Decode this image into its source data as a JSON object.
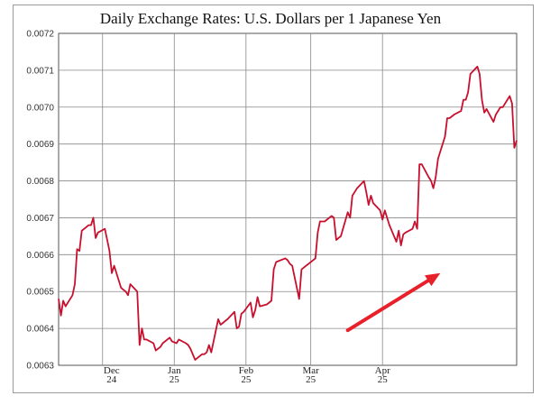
{
  "chart_data": {
    "type": "line",
    "title": "Daily Exchange Rates: U.S. Dollars per 1 Japanese Yen",
    "xlabel": "",
    "ylabel": "",
    "ylim": [
      0.0063,
      0.0072
    ],
    "yticks": [
      "0.0063",
      "0.0064",
      "0.0065",
      "0.0066",
      "0.0067",
      "0.0068",
      "0.0069",
      "0.0070",
      "0.0071",
      "0.0072"
    ],
    "xlim": [
      "2024-11-12",
      "2025-05-29"
    ],
    "xticks": [
      {
        "date": "2024-12-01",
        "month": "Dec",
        "year": "24"
      },
      {
        "date": "2025-01-01",
        "month": "Jan",
        "year": "25"
      },
      {
        "date": "2025-02-01",
        "month": "Feb",
        "year": "25"
      },
      {
        "date": "2025-03-01",
        "month": "Mar",
        "year": "25"
      },
      {
        "date": "2025-04-01",
        "month": "Apr",
        "year": "25"
      }
    ],
    "grid": true,
    "series": [
      {
        "color": "#c8102e",
        "points": [
          [
            "2024-11-12",
            0.00648
          ],
          [
            "2024-11-13",
            0.006435
          ],
          [
            "2024-11-14",
            0.006475
          ],
          [
            "2024-11-15",
            0.00646
          ],
          [
            "2024-11-18",
            0.00649
          ],
          [
            "2024-11-19",
            0.00652
          ],
          [
            "2024-11-20",
            0.006615
          ],
          [
            "2024-11-21",
            0.00661
          ],
          [
            "2024-11-22",
            0.006665
          ],
          [
            "2024-11-25",
            0.00668
          ],
          [
            "2024-11-26",
            0.00668
          ],
          [
            "2024-11-27",
            0.0067
          ],
          [
            "2024-11-28",
            0.006645
          ],
          [
            "2024-11-29",
            0.00666
          ],
          [
            "2024-12-02",
            0.00667
          ],
          [
            "2024-12-03",
            0.00664
          ],
          [
            "2024-12-04",
            0.00661
          ],
          [
            "2024-12-05",
            0.00655
          ],
          [
            "2024-12-06",
            0.00657
          ],
          [
            "2024-12-09",
            0.00651
          ],
          [
            "2024-12-10",
            0.006505
          ],
          [
            "2024-12-11",
            0.0065
          ],
          [
            "2024-12-12",
            0.00649
          ],
          [
            "2024-12-13",
            0.00652
          ],
          [
            "2024-12-16",
            0.0065
          ],
          [
            "2024-12-17",
            0.006355
          ],
          [
            "2024-12-18",
            0.0064
          ],
          [
            "2024-12-19",
            0.00637
          ],
          [
            "2024-12-20",
            0.00637
          ],
          [
            "2024-12-23",
            0.00636
          ],
          [
            "2024-12-24",
            0.00634
          ],
          [
            "2024-12-26",
            0.00635
          ],
          [
            "2024-12-27",
            0.00636
          ],
          [
            "2024-12-30",
            0.006375
          ],
          [
            "2024-12-31",
            0.006365
          ],
          [
            "2025-01-02",
            0.00636
          ],
          [
            "2025-01-03",
            0.00637
          ],
          [
            "2025-01-06",
            0.00636
          ],
          [
            "2025-01-07",
            0.006355
          ],
          [
            "2025-01-08",
            0.006345
          ],
          [
            "2025-01-10",
            0.006315
          ],
          [
            "2025-01-13",
            0.00633
          ],
          [
            "2025-01-14",
            0.00633
          ],
          [
            "2025-01-15",
            0.006335
          ],
          [
            "2025-01-16",
            0.006355
          ],
          [
            "2025-01-17",
            0.006335
          ],
          [
            "2025-01-20",
            0.006425
          ],
          [
            "2025-01-21",
            0.00641
          ],
          [
            "2025-01-22",
            0.006415
          ],
          [
            "2025-01-23",
            0.00642
          ],
          [
            "2025-01-24",
            0.006425
          ],
          [
            "2025-01-27",
            0.006445
          ],
          [
            "2025-01-28",
            0.0064
          ],
          [
            "2025-01-29",
            0.006405
          ],
          [
            "2025-01-30",
            0.00644
          ],
          [
            "2025-01-31",
            0.006445
          ],
          [
            "2025-02-03",
            0.00647
          ],
          [
            "2025-02-04",
            0.00643
          ],
          [
            "2025-02-05",
            0.00645
          ],
          [
            "2025-02-06",
            0.006485
          ],
          [
            "2025-02-07",
            0.00646
          ],
          [
            "2025-02-10",
            0.006465
          ],
          [
            "2025-02-11",
            0.00647
          ],
          [
            "2025-02-12",
            0.006475
          ],
          [
            "2025-02-13",
            0.00656
          ],
          [
            "2025-02-14",
            0.00658
          ],
          [
            "2025-02-18",
            0.00659
          ],
          [
            "2025-02-19",
            0.006585
          ],
          [
            "2025-02-20",
            0.006575
          ],
          [
            "2025-02-21",
            0.00657
          ],
          [
            "2025-02-24",
            0.00648
          ],
          [
            "2025-02-25",
            0.00656
          ],
          [
            "2025-02-26",
            0.006565
          ],
          [
            "2025-02-27",
            0.00657
          ],
          [
            "2025-02-28",
            0.006575
          ],
          [
            "2025-03-03",
            0.00659
          ],
          [
            "2025-03-04",
            0.00666
          ],
          [
            "2025-03-05",
            0.00669
          ],
          [
            "2025-03-06",
            0.00669
          ],
          [
            "2025-03-07",
            0.00669
          ],
          [
            "2025-03-10",
            0.006705
          ],
          [
            "2025-03-11",
            0.0067
          ],
          [
            "2025-03-12",
            0.00664
          ],
          [
            "2025-03-13",
            0.006645
          ],
          [
            "2025-03-14",
            0.00665
          ],
          [
            "2025-03-17",
            0.006715
          ],
          [
            "2025-03-18",
            0.0067
          ],
          [
            "2025-03-19",
            0.00676
          ],
          [
            "2025-03-20",
            0.00677
          ],
          [
            "2025-03-21",
            0.00678
          ],
          [
            "2025-03-24",
            0.0068
          ],
          [
            "2025-03-25",
            0.00677
          ],
          [
            "2025-03-26",
            0.006735
          ],
          [
            "2025-03-27",
            0.00676
          ],
          [
            "2025-03-28",
            0.00674
          ],
          [
            "2025-03-31",
            0.00672
          ],
          [
            "2025-04-01",
            0.006695
          ],
          [
            "2025-04-02",
            0.00672
          ],
          [
            "2025-04-03",
            0.0067
          ],
          [
            "2025-04-04",
            0.00668
          ],
          [
            "2025-04-07",
            0.006635
          ],
          [
            "2025-04-08",
            0.006665
          ],
          [
            "2025-04-09",
            0.006625
          ],
          [
            "2025-04-10",
            0.006655
          ],
          [
            "2025-04-11",
            0.00666
          ],
          [
            "2025-04-14",
            0.00667
          ],
          [
            "2025-04-15",
            0.00669
          ],
          [
            "2025-04-16",
            0.00667
          ],
          [
            "2025-04-17",
            0.006845
          ],
          [
            "2025-04-18",
            0.006845
          ],
          [
            "2025-04-21",
            0.00681
          ],
          [
            "2025-04-22",
            0.0068
          ],
          [
            "2025-04-23",
            0.00678
          ],
          [
            "2025-04-24",
            0.00681
          ],
          [
            "2025-04-25",
            0.00686
          ],
          [
            "2025-04-28",
            0.00692
          ],
          [
            "2025-04-29",
            0.00697
          ],
          [
            "2025-04-30",
            0.00697
          ],
          [
            "2025-05-01",
            0.006975
          ],
          [
            "2025-05-02",
            0.00698
          ],
          [
            "2025-05-05",
            0.00699
          ],
          [
            "2025-05-06",
            0.00702
          ],
          [
            "2025-05-07",
            0.00702
          ],
          [
            "2025-05-08",
            0.00704
          ],
          [
            "2025-05-09",
            0.00709
          ],
          [
            "2025-05-12",
            0.00711
          ],
          [
            "2025-05-13",
            0.00709
          ],
          [
            "2025-05-14",
            0.00702
          ],
          [
            "2025-05-15",
            0.006985
          ],
          [
            "2025-05-16",
            0.006995
          ],
          [
            "2025-05-19",
            0.00696
          ],
          [
            "2025-05-20",
            0.00698
          ],
          [
            "2025-05-21",
            0.00699
          ],
          [
            "2025-05-22",
            0.007
          ],
          [
            "2025-05-23",
            0.007
          ],
          [
            "2025-05-26",
            0.00703
          ],
          [
            "2025-05-27",
            0.00701
          ],
          [
            "2025-05-28",
            0.00689
          ],
          [
            "2025-05-29",
            0.00691
          ]
        ]
      }
    ],
    "annotation": {
      "type": "arrow",
      "color": "#e8202a",
      "from": [
        "2025-03-17",
        0.006395
      ],
      "to": [
        "2025-04-26",
        0.00655
      ]
    }
  }
}
